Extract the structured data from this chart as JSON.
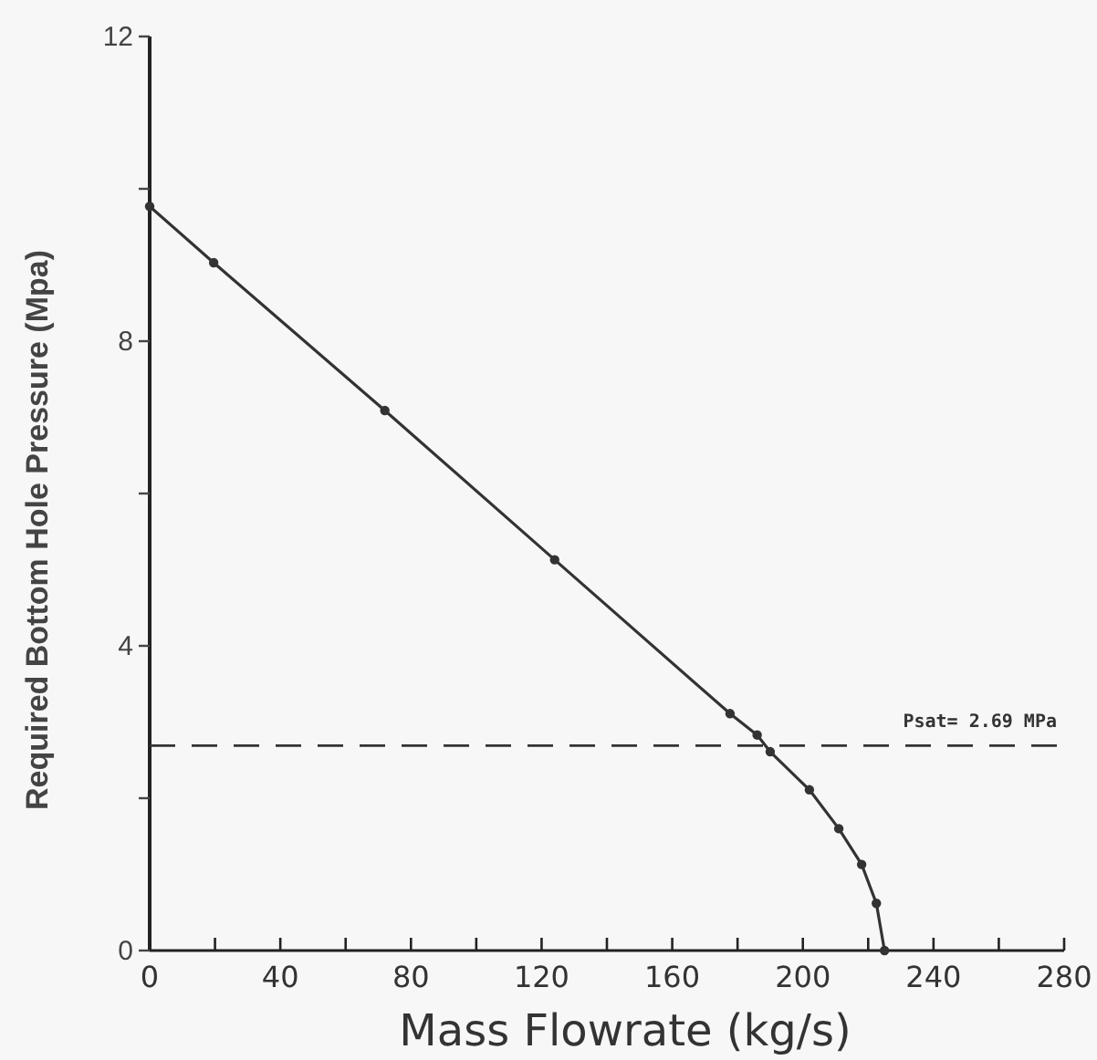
{
  "chart_data": {
    "type": "line",
    "xlabel": "Mass Flowrate (kg/s)",
    "ylabel": "Required Bottom Hole Pressure (Mpa)",
    "xlim": [
      0,
      280
    ],
    "ylim": [
      0,
      12
    ],
    "xticks": [
      0,
      {
        "value": 20,
        "label": null
      },
      40,
      {
        "value": 60,
        "label": null
      },
      80,
      {
        "value": 100,
        "label": null
      },
      120,
      {
        "value": 140,
        "label": null
      },
      160,
      {
        "value": 180,
        "label": null
      },
      200,
      {
        "value": 220,
        "label": null
      },
      240,
      {
        "value": 260,
        "label": null
      },
      280
    ],
    "yticks": [
      0,
      {
        "value": 2,
        "label": null
      },
      4,
      {
        "value": 6,
        "label": null
      },
      8,
      {
        "value": 10,
        "label": null
      },
      12
    ],
    "x": [
      0,
      19.6,
      72,
      124,
      177.7,
      186,
      190,
      202,
      211,
      218,
      222.5,
      225
    ],
    "series": [
      {
        "color": "#333333",
        "values": [
          9.77,
          9.03,
          7.09,
          5.13,
          3.11,
          2.83,
          2.61,
          2.11,
          1.6,
          1.13,
          0.62,
          0
        ]
      }
    ],
    "ref_lines": [
      {
        "axis": "y",
        "value": 2.69,
        "label": "Psat= 2.69 MPa",
        "line_style": "dashed",
        "color": "#333333"
      }
    ],
    "marker": "circle",
    "line_style": "solid",
    "grid": false
  }
}
